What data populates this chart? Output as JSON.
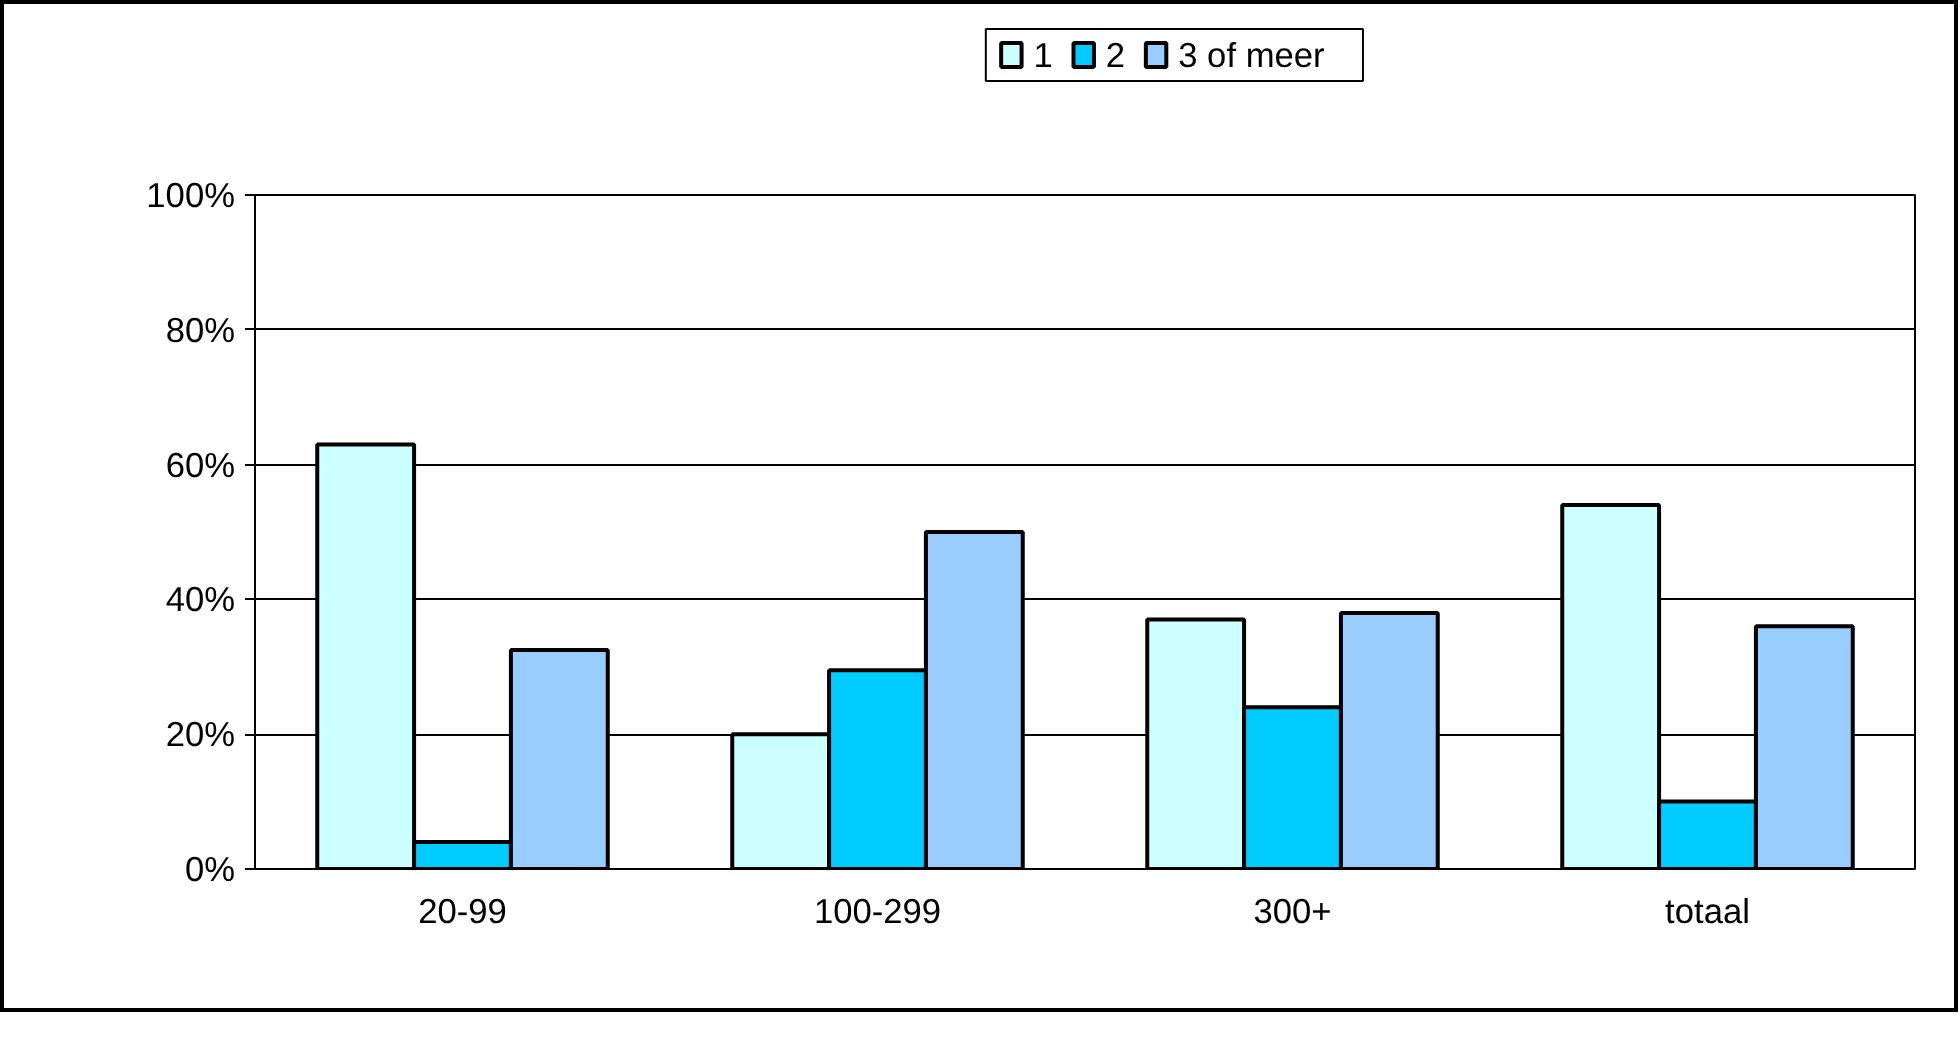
{
  "chart_data": {
    "type": "bar",
    "categories": [
      "20-99",
      "100-299",
      "300+",
      "totaal"
    ],
    "series": [
      {
        "name": "1",
        "color": "#ccffff",
        "values": [
          63,
          20,
          37,
          54
        ]
      },
      {
        "name": "2",
        "color": "#00ccff",
        "values": [
          4,
          29.5,
          24,
          10
        ]
      },
      {
        "name": "3 of meer",
        "color": "#99ccff",
        "values": [
          32.5,
          50,
          38,
          36
        ]
      }
    ],
    "ylim": [
      0,
      100
    ],
    "yticks": [
      {
        "value": 0,
        "label": "0%"
      },
      {
        "value": 20,
        "label": "20%"
      },
      {
        "value": 40,
        "label": "40%"
      },
      {
        "value": 60,
        "label": "60%"
      },
      {
        "value": 80,
        "label": "80%"
      },
      {
        "value": 100,
        "label": "100%"
      }
    ],
    "grid": "y",
    "legend": "top"
  }
}
